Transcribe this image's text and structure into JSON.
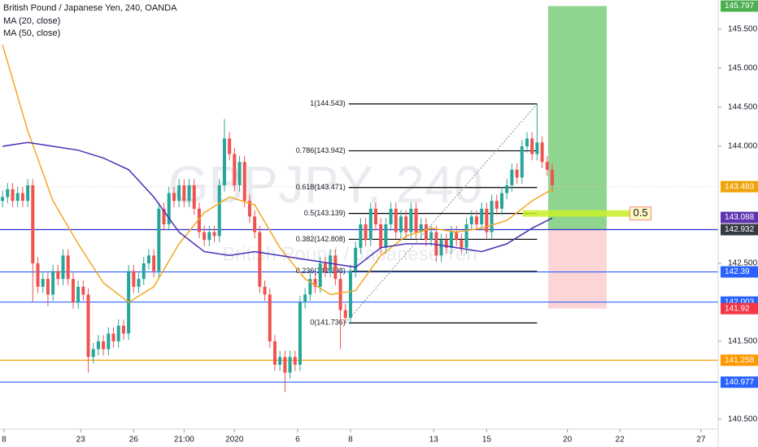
{
  "chart_data": {
    "type": "candlestick",
    "title": "British Pound / Japanese Yen, 240, OANDA",
    "watermark": "GBPJPY, 240",
    "watermark_subtitle": "British Pound / Japanese Yen",
    "up_color": "#26a69a",
    "down_color": "#ef5350",
    "xlim": [
      -0.5,
      141.9
    ],
    "ylim": [
      140.375,
      145.875
    ],
    "yticks": [
      {
        "value": 140.5,
        "label": "140.500"
      },
      {
        "value": 141.5,
        "label": "141.500"
      },
      {
        "value": 142.5,
        "label": "142.500"
      },
      {
        "value": 144,
        "label": "144.000"
      },
      {
        "value": 144.5,
        "label": "144.500"
      },
      {
        "value": 145,
        "label": "145.000"
      },
      {
        "value": 145.5,
        "label": "145.500"
      }
    ],
    "xticks": [
      {
        "value": 0.3,
        "label": "8"
      },
      {
        "value": 15.5,
        "label": "23"
      },
      {
        "value": 26,
        "label": "26"
      },
      {
        "value": 36,
        "label": "21:00"
      },
      {
        "value": 46,
        "label": "2020"
      },
      {
        "value": 58.5,
        "label": "6"
      },
      {
        "value": 69,
        "label": "8"
      },
      {
        "value": 85.5,
        "label": "13"
      },
      {
        "value": 96,
        "label": "15"
      },
      {
        "value": 112,
        "label": "20"
      },
      {
        "value": 122.4,
        "label": "22"
      },
      {
        "value": 138.5,
        "label": "27"
      }
    ],
    "ohlc": [
      [
        143.3,
        143.43,
        143.22,
        143.35
      ],
      [
        143.35,
        143.53,
        143.27,
        143.45
      ],
      [
        143.45,
        143.53,
        143.22,
        143.3
      ],
      [
        143.3,
        143.48,
        143.22,
        143.4
      ],
      [
        143.4,
        143.48,
        143.22,
        143.3
      ],
      [
        143.3,
        143.58,
        143.22,
        143.5
      ],
      [
        143.5,
        143.58,
        142.0,
        142.5
      ],
      [
        142.5,
        142.58,
        142.12,
        142.2
      ],
      [
        142.2,
        142.38,
        142.12,
        142.3
      ],
      [
        142.3,
        142.38,
        141.95,
        142.1
      ],
      [
        142.1,
        142.48,
        142.02,
        142.4
      ],
      [
        142.4,
        142.48,
        142.22,
        142.3
      ],
      [
        142.3,
        142.68,
        142.22,
        142.6
      ],
      [
        142.6,
        142.68,
        142.22,
        142.3
      ],
      [
        142.3,
        142.38,
        141.92,
        142.0
      ],
      [
        142.0,
        142.28,
        141.92,
        142.2
      ],
      [
        142.2,
        142.28,
        142.02,
        142.1
      ],
      [
        142.1,
        142.18,
        141.1,
        141.3
      ],
      [
        141.3,
        141.48,
        141.22,
        141.4
      ],
      [
        141.4,
        141.58,
        141.32,
        141.5
      ],
      [
        141.5,
        141.58,
        141.32,
        141.4
      ],
      [
        141.4,
        141.68,
        141.32,
        141.6
      ],
      [
        141.6,
        141.68,
        141.42,
        141.5
      ],
      [
        141.5,
        141.78,
        141.42,
        141.7
      ],
      [
        141.7,
        141.78,
        141.52,
        141.6
      ],
      [
        141.6,
        142.48,
        141.52,
        142.4
      ],
      [
        142.4,
        142.48,
        142.12,
        142.2
      ],
      [
        142.2,
        142.38,
        142.12,
        142.3
      ],
      [
        142.3,
        142.58,
        142.22,
        142.5
      ],
      [
        142.5,
        142.68,
        142.42,
        142.6
      ],
      [
        142.6,
        142.68,
        142.32,
        142.4
      ],
      [
        142.4,
        143.28,
        142.32,
        143.2
      ],
      [
        143.2,
        143.28,
        142.92,
        143.0
      ],
      [
        143.0,
        143.48,
        142.92,
        143.4
      ],
      [
        143.4,
        143.48,
        143.22,
        143.3
      ],
      [
        143.3,
        143.58,
        143.22,
        143.5
      ],
      [
        143.5,
        143.58,
        143.22,
        143.3
      ],
      [
        143.3,
        143.58,
        143.22,
        143.5
      ],
      [
        143.5,
        143.58,
        143.12,
        143.2
      ],
      [
        143.2,
        143.28,
        142.82,
        142.9
      ],
      [
        142.9,
        142.98,
        142.72,
        142.8
      ],
      [
        142.8,
        142.98,
        142.72,
        142.9
      ],
      [
        142.9,
        142.98,
        142.77,
        142.85
      ],
      [
        142.85,
        143.58,
        142.77,
        143.5
      ],
      [
        143.5,
        144.35,
        143.42,
        144.1
      ],
      [
        144.1,
        144.18,
        143.82,
        143.9
      ],
      [
        143.9,
        143.98,
        143.42,
        143.5
      ],
      [
        143.5,
        143.88,
        143.42,
        143.8
      ],
      [
        143.8,
        143.88,
        143.22,
        143.3
      ],
      [
        143.3,
        143.38,
        143.02,
        143.1
      ],
      [
        143.1,
        143.18,
        142.82,
        142.9
      ],
      [
        142.9,
        142.98,
        142.12,
        142.2
      ],
      [
        142.2,
        142.28,
        142.02,
        142.1
      ],
      [
        142.1,
        142.18,
        141.42,
        141.5
      ],
      [
        141.5,
        141.58,
        141.12,
        141.2
      ],
      [
        141.2,
        141.38,
        141.12,
        141.3
      ],
      [
        141.3,
        141.38,
        140.85,
        141.1
      ],
      [
        141.1,
        141.38,
        141.02,
        141.3
      ],
      [
        141.3,
        141.38,
        141.12,
        141.2
      ],
      [
        141.2,
        142.08,
        141.12,
        142.0
      ],
      [
        142.0,
        142.18,
        141.92,
        142.1
      ],
      [
        142.1,
        142.38,
        142.02,
        142.3
      ],
      [
        142.3,
        142.38,
        142.12,
        142.2
      ],
      [
        142.2,
        142.58,
        142.12,
        142.5
      ],
      [
        142.5,
        142.58,
        142.32,
        142.4
      ],
      [
        142.4,
        142.68,
        142.32,
        142.6
      ],
      [
        142.6,
        142.68,
        142.22,
        142.3
      ],
      [
        142.3,
        142.38,
        141.4,
        141.9
      ],
      [
        141.9,
        141.98,
        141.74,
        141.8
      ],
      [
        141.8,
        142.48,
        141.72,
        142.4
      ],
      [
        142.4,
        142.78,
        142.32,
        142.7
      ],
      [
        142.7,
        143.08,
        142.62,
        143.0
      ],
      [
        143.0,
        143.08,
        142.72,
        142.8
      ],
      [
        142.8,
        143.28,
        142.72,
        143.2
      ],
      [
        143.2,
        143.28,
        142.92,
        143.0
      ],
      [
        143.0,
        143.08,
        142.62,
        142.7
      ],
      [
        142.7,
        143.08,
        142.62,
        143.0
      ],
      [
        143.0,
        143.28,
        142.92,
        143.2
      ],
      [
        143.2,
        143.28,
        142.82,
        142.9
      ],
      [
        142.9,
        143.18,
        142.82,
        143.1
      ],
      [
        143.1,
        143.18,
        142.82,
        142.9
      ],
      [
        142.9,
        143.28,
        142.82,
        143.2
      ],
      [
        143.2,
        143.28,
        142.82,
        142.9
      ],
      [
        142.9,
        143.08,
        142.82,
        143.0
      ],
      [
        143.0,
        143.08,
        142.72,
        142.8
      ],
      [
        142.8,
        142.98,
        142.72,
        142.9
      ],
      [
        142.9,
        142.98,
        142.52,
        142.6
      ],
      [
        142.6,
        142.88,
        142.52,
        142.8
      ],
      [
        142.8,
        142.88,
        142.62,
        142.7
      ],
      [
        142.7,
        142.98,
        142.62,
        142.9
      ],
      [
        142.9,
        142.98,
        142.72,
        142.8
      ],
      [
        142.8,
        142.88,
        142.62,
        142.7
      ],
      [
        142.7,
        143.08,
        142.62,
        143.0
      ],
      [
        143.0,
        143.18,
        142.92,
        143.1
      ],
      [
        143.1,
        143.18,
        142.92,
        143.0
      ],
      [
        143.0,
        143.28,
        142.92,
        143.2
      ],
      [
        143.2,
        143.28,
        142.82,
        142.9
      ],
      [
        142.9,
        143.38,
        142.82,
        143.3
      ],
      [
        143.3,
        143.38,
        143.12,
        143.2
      ],
      [
        143.2,
        143.48,
        143.12,
        143.4
      ],
      [
        143.4,
        143.58,
        143.32,
        143.5
      ],
      [
        143.5,
        143.78,
        143.42,
        143.7
      ],
      [
        143.7,
        143.78,
        143.52,
        143.6
      ],
      [
        143.6,
        144.08,
        143.52,
        144.0
      ],
      [
        144.0,
        144.18,
        143.92,
        144.1
      ],
      [
        144.1,
        144.18,
        143.82,
        143.9
      ],
      [
        143.9,
        144.55,
        143.82,
        144.05
      ],
      [
        144.05,
        144.13,
        143.72,
        143.8
      ],
      [
        143.8,
        143.88,
        143.62,
        143.7
      ],
      [
        143.7,
        143.78,
        143.42,
        143.5
      ]
    ],
    "series": [
      {
        "name": "MA (20, close)",
        "color": "#f5a623",
        "x": [
          0,
          5,
          10,
          15,
          20,
          25,
          30,
          35,
          40,
          45,
          50,
          55,
          60,
          65,
          70,
          75,
          80,
          85,
          90,
          95,
          100,
          105,
          109
        ],
        "values": [
          145.3,
          144.2,
          143.3,
          142.75,
          142.25,
          142.0,
          142.2,
          142.75,
          143.15,
          143.35,
          143.25,
          142.7,
          142.3,
          142.1,
          142.15,
          142.6,
          142.85,
          142.95,
          142.9,
          142.95,
          143.05,
          143.3,
          143.45
        ]
      },
      {
        "name": "MA (50, close)",
        "color": "#4a2fb5",
        "x": [
          0,
          5,
          10,
          15,
          20,
          25,
          30,
          35,
          40,
          45,
          50,
          55,
          60,
          65,
          70,
          75,
          80,
          85,
          90,
          95,
          100,
          105,
          109
        ],
        "values": [
          144.0,
          144.05,
          144.0,
          143.95,
          143.85,
          143.7,
          143.35,
          142.9,
          142.65,
          142.6,
          142.65,
          142.6,
          142.55,
          142.5,
          142.45,
          142.7,
          142.75,
          142.75,
          142.7,
          142.65,
          142.75,
          142.95,
          143.08
        ]
      }
    ],
    "fib_x": [
      68,
      106
    ],
    "fib_levels": [
      {
        "value": 144.543,
        "label": "1(144.543)"
      },
      {
        "value": 143.942,
        "label": "0.786(143.942)"
      },
      {
        "value": 143.471,
        "label": "0.618(143.471)"
      },
      {
        "value": 143.139,
        "label": "0.5(143.139)"
      },
      {
        "value": 142.808,
        "label": "0.382(142.808)"
      },
      {
        "value": 142.398,
        "label": "0.236(142.398)"
      },
      {
        "value": 141.736,
        "label": "0(141.736)"
      }
    ],
    "position": {
      "x": [
        108.2,
        119.8
      ],
      "target": 145.797,
      "entry": 142.932,
      "stop": 141.92
    },
    "price_lines": [
      {
        "value": 142.39,
        "color": "#2962ff"
      },
      {
        "value": 142.003,
        "color": "#2962ff"
      },
      {
        "value": 141.258,
        "color": "#ff9800"
      },
      {
        "value": 140.977,
        "color": "#2962ff"
      }
    ],
    "tags": [
      {
        "value": 143.483,
        "color": "#f0a30a"
      },
      {
        "value": 143.088,
        "color": "#5e35b1"
      }
    ],
    "highlight": {
      "x": [
        103.1,
        124.4
      ],
      "value": 143.139,
      "label": "0.5"
    }
  }
}
